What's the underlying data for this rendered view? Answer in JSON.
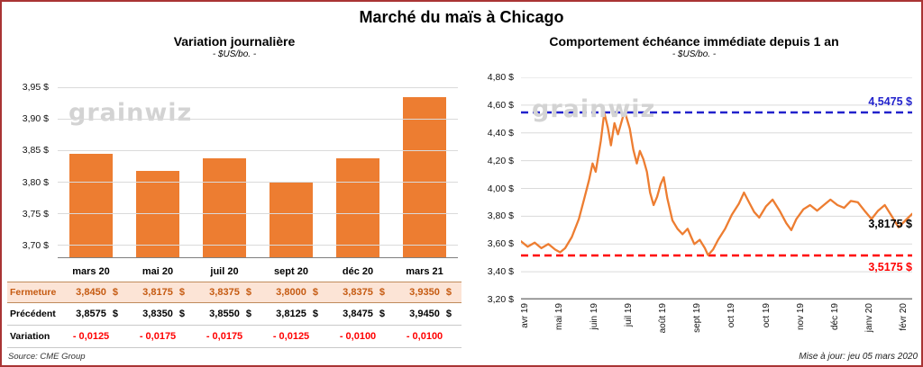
{
  "page_title": "Marché du maïs à Chicago",
  "watermark": "grainwiz",
  "source": "Source: CME Group",
  "updated": "Mise à jour: jeu 05 mars 2020",
  "colors": {
    "orange": "#ED7D31",
    "red": "#FF0000",
    "blue": "#2222CC",
    "peach_row_bg": "#FCE4D6",
    "brown_text": "#C55A11",
    "grid": "#DADADA",
    "axis": "#7F7F7F",
    "page_border": "#A93434",
    "watermark_gray": "#D3D3D3"
  },
  "chart_data": [
    {
      "type": "bar",
      "title": "Variation journalière",
      "subtitle": "- $US/bo. -",
      "categories": [
        "mars 20",
        "mai 20",
        "juil 20",
        "sept 20",
        "déc 20",
        "mars 21"
      ],
      "values": [
        3.845,
        3.8175,
        3.8375,
        3.8,
        3.8375,
        3.935
      ],
      "ylim": [
        3.68,
        3.96
      ],
      "grid": true,
      "bar_color": "#ED7D31",
      "yticks": [
        {
          "v": 3.95,
          "label": "3,95 $"
        },
        {
          "v": 3.9,
          "label": "3,90 $"
        },
        {
          "v": 3.85,
          "label": "3,85 $"
        },
        {
          "v": 3.8,
          "label": "3,80 $"
        },
        {
          "v": 3.75,
          "label": "3,75 $"
        },
        {
          "v": 3.7,
          "label": "3,70 $"
        }
      ],
      "table": {
        "rows": [
          {
            "label": "Fermeture",
            "style": "close",
            "values": [
              "3,8450 $",
              "3,8175 $",
              "3,8375 $",
              "3,8000 $",
              "3,8375 $",
              "3,9350 $"
            ]
          },
          {
            "label": "Précédent",
            "style": "prev",
            "values": [
              "3,8575 $",
              "3,8350 $",
              "3,8550 $",
              "3,8125 $",
              "3,8475 $",
              "3,9450 $"
            ]
          },
          {
            "label": "Variation",
            "style": "var",
            "values": [
              "- 0,0125",
              "- 0,0175",
              "- 0,0175",
              "- 0,0125",
              "- 0,0100",
              "- 0,0100"
            ]
          }
        ]
      }
    },
    {
      "type": "line",
      "title": "Comportement échéance immédiate depuis 1 an",
      "subtitle": "- $US/bo. -",
      "ylim": [
        3.2,
        4.8
      ],
      "grid": true,
      "line_color": "#ED7D31",
      "yticks": [
        {
          "v": 4.8,
          "label": "4,80 $"
        },
        {
          "v": 4.6,
          "label": "4,60 $"
        },
        {
          "v": 4.4,
          "label": "4,40 $"
        },
        {
          "v": 4.2,
          "label": "4,20 $"
        },
        {
          "v": 4.0,
          "label": "4,00 $"
        },
        {
          "v": 3.8,
          "label": "3,80 $"
        },
        {
          "v": 3.6,
          "label": "3,60 $"
        },
        {
          "v": 3.4,
          "label": "3,40 $"
        },
        {
          "v": 3.2,
          "label": "3,20 $"
        }
      ],
      "xticks": [
        {
          "f": 0.012,
          "label": "avr 19"
        },
        {
          "f": 0.1,
          "label": "mai 19"
        },
        {
          "f": 0.188,
          "label": "juin 19"
        },
        {
          "f": 0.276,
          "label": "juil 19"
        },
        {
          "f": 0.364,
          "label": "août 19"
        },
        {
          "f": 0.452,
          "label": "sept 19"
        },
        {
          "f": 0.54,
          "label": "oct 19"
        },
        {
          "f": 0.628,
          "label": "oct 19"
        },
        {
          "f": 0.716,
          "label": "nov 19"
        },
        {
          "f": 0.804,
          "label": "déc 19"
        },
        {
          "f": 0.892,
          "label": "janv 20"
        },
        {
          "f": 0.98,
          "label": "févr 20"
        }
      ],
      "ref_lines": [
        {
          "value": 4.5475,
          "label": "4,5475 $",
          "color": "#2222CC"
        },
        {
          "value": 3.5175,
          "label": "3,5175 $",
          "color": "#FF0000"
        }
      ],
      "last_label": {
        "value": 3.8175,
        "label": "3,8175 $",
        "color": "#000000"
      },
      "series": [
        {
          "points": [
            [
              0.0,
              3.62
            ],
            [
              0.017,
              3.58
            ],
            [
              0.035,
              3.61
            ],
            [
              0.052,
              3.57
            ],
            [
              0.07,
              3.6
            ],
            [
              0.087,
              3.56
            ],
            [
              0.1,
              3.54
            ],
            [
              0.113,
              3.57
            ],
            [
              0.13,
              3.65
            ],
            [
              0.148,
              3.78
            ],
            [
              0.161,
              3.92
            ],
            [
              0.174,
              4.06
            ],
            [
              0.183,
              4.18
            ],
            [
              0.191,
              4.12
            ],
            [
              0.204,
              4.34
            ],
            [
              0.213,
              4.545
            ],
            [
              0.222,
              4.44
            ],
            [
              0.23,
              4.31
            ],
            [
              0.239,
              4.47
            ],
            [
              0.248,
              4.39
            ],
            [
              0.261,
              4.52
            ],
            [
              0.266,
              4.5475
            ],
            [
              0.278,
              4.43
            ],
            [
              0.287,
              4.28
            ],
            [
              0.296,
              4.18
            ],
            [
              0.304,
              4.27
            ],
            [
              0.313,
              4.21
            ],
            [
              0.322,
              4.12
            ],
            [
              0.33,
              3.97
            ],
            [
              0.339,
              3.88
            ],
            [
              0.348,
              3.94
            ],
            [
              0.357,
              4.03
            ],
            [
              0.365,
              4.08
            ],
            [
              0.374,
              3.93
            ],
            [
              0.387,
              3.77
            ],
            [
              0.4,
              3.71
            ],
            [
              0.413,
              3.67
            ],
            [
              0.426,
              3.71
            ],
            [
              0.435,
              3.65
            ],
            [
              0.443,
              3.6
            ],
            [
              0.457,
              3.63
            ],
            [
              0.47,
              3.57
            ],
            [
              0.478,
              3.52
            ],
            [
              0.491,
              3.56
            ],
            [
              0.504,
              3.63
            ],
            [
              0.522,
              3.71
            ],
            [
              0.539,
              3.81
            ],
            [
              0.557,
              3.89
            ],
            [
              0.57,
              3.97
            ],
            [
              0.583,
              3.9
            ],
            [
              0.596,
              3.83
            ],
            [
              0.609,
              3.79
            ],
            [
              0.626,
              3.87
            ],
            [
              0.643,
              3.92
            ],
            [
              0.661,
              3.84
            ],
            [
              0.678,
              3.75
            ],
            [
              0.691,
              3.7
            ],
            [
              0.704,
              3.78
            ],
            [
              0.722,
              3.85
            ],
            [
              0.739,
              3.88
            ],
            [
              0.757,
              3.84
            ],
            [
              0.774,
              3.88
            ],
            [
              0.791,
              3.92
            ],
            [
              0.809,
              3.88
            ],
            [
              0.826,
              3.86
            ],
            [
              0.843,
              3.91
            ],
            [
              0.861,
              3.9
            ],
            [
              0.878,
              3.84
            ],
            [
              0.896,
              3.78
            ],
            [
              0.913,
              3.84
            ],
            [
              0.93,
              3.88
            ],
            [
              0.948,
              3.8
            ],
            [
              0.965,
              3.72
            ],
            [
              0.983,
              3.77
            ],
            [
              1.0,
              3.8175
            ]
          ]
        }
      ]
    }
  ]
}
